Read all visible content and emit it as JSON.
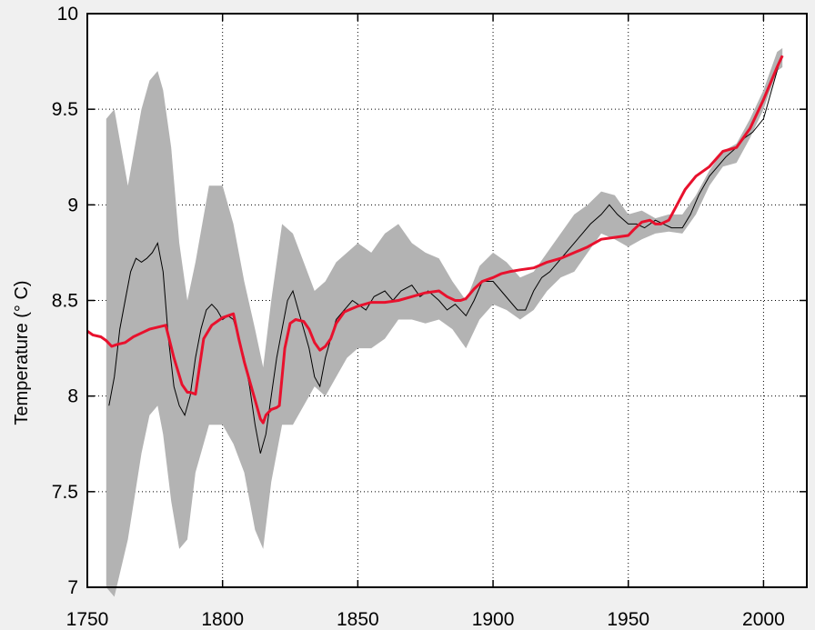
{
  "chart_data": {
    "type": "line",
    "title": "",
    "xlabel": "",
    "ylabel": "Temperature (° C)",
    "xlim": [
      1750,
      2016
    ],
    "ylim": [
      7,
      10
    ],
    "x_ticks": [
      1750,
      1800,
      1850,
      1900,
      1950,
      2000
    ],
    "y_ticks": [
      7,
      7.5,
      8,
      8.5,
      9,
      9.5,
      10
    ],
    "x_tick_labels": [
      "1750",
      "1800",
      "1850",
      "1900",
      "1950",
      "2000"
    ],
    "y_tick_labels": [
      "7",
      "7.5",
      "8",
      "8.5",
      "9",
      "9.5",
      "10"
    ],
    "grid": true,
    "colors": {
      "band": "#b3b3b3",
      "black_line": "#000000",
      "red_line": "#e8112d",
      "plot_bg": "#ffffff",
      "page_bg": "#f0f0f0"
    },
    "series": [
      {
        "kind": "uncertainty-band",
        "x": [
          1757,
          1760,
          1765,
          1770,
          1773,
          1776,
          1778,
          1781,
          1784,
          1787,
          1790,
          1795,
          1800,
          1804,
          1808,
          1812,
          1815,
          1818,
          1822,
          1826,
          1830,
          1834,
          1838,
          1842,
          1846,
          1850,
          1855,
          1860,
          1865,
          1870,
          1875,
          1880,
          1885,
          1890,
          1895,
          1900,
          1905,
          1910,
          1915,
          1920,
          1925,
          1930,
          1935,
          1940,
          1945,
          1950,
          1955,
          1960,
          1965,
          1970,
          1975,
          1980,
          1985,
          1990,
          1995,
          2000,
          2005,
          2007
        ],
        "upper": [
          9.45,
          9.5,
          9.1,
          9.5,
          9.65,
          9.7,
          9.6,
          9.3,
          8.8,
          8.5,
          8.7,
          9.1,
          9.1,
          8.9,
          8.6,
          8.35,
          8.15,
          8.5,
          8.9,
          8.85,
          8.7,
          8.55,
          8.6,
          8.7,
          8.75,
          8.8,
          8.75,
          8.85,
          8.9,
          8.8,
          8.75,
          8.72,
          8.6,
          8.5,
          8.68,
          8.75,
          8.7,
          8.62,
          8.65,
          8.75,
          8.85,
          8.95,
          9.0,
          9.07,
          9.05,
          8.95,
          8.97,
          8.93,
          8.95,
          8.95,
          9.05,
          9.18,
          9.28,
          9.32,
          9.45,
          9.6,
          9.8,
          9.82
        ],
        "lower": [
          7.0,
          6.95,
          7.25,
          7.7,
          7.9,
          7.95,
          7.8,
          7.45,
          7.2,
          7.25,
          7.6,
          7.85,
          7.85,
          7.75,
          7.6,
          7.3,
          7.2,
          7.55,
          7.85,
          7.85,
          7.95,
          8.05,
          8.0,
          8.1,
          8.2,
          8.25,
          8.25,
          8.3,
          8.4,
          8.4,
          8.38,
          8.4,
          8.35,
          8.25,
          8.4,
          8.48,
          8.45,
          8.4,
          8.45,
          8.55,
          8.62,
          8.65,
          8.75,
          8.85,
          8.82,
          8.78,
          8.82,
          8.85,
          8.86,
          8.85,
          8.95,
          9.1,
          9.2,
          9.22,
          9.35,
          9.5,
          9.7,
          9.72
        ]
      },
      {
        "kind": "black-line",
        "x": [
          1758,
          1760,
          1762,
          1764,
          1766,
          1768,
          1770,
          1772,
          1774,
          1776,
          1778,
          1780,
          1782,
          1784,
          1786,
          1788,
          1790,
          1792,
          1794,
          1796,
          1798,
          1800,
          1802,
          1804,
          1806,
          1808,
          1810,
          1812,
          1814,
          1816,
          1818,
          1820,
          1822,
          1824,
          1826,
          1828,
          1830,
          1832,
          1834,
          1836,
          1838,
          1840,
          1842,
          1845,
          1848,
          1850,
          1853,
          1856,
          1860,
          1863,
          1866,
          1870,
          1873,
          1876,
          1880,
          1883,
          1886,
          1890,
          1893,
          1896,
          1900,
          1903,
          1906,
          1909,
          1912,
          1915,
          1918,
          1921,
          1924,
          1927,
          1930,
          1933,
          1936,
          1940,
          1943,
          1946,
          1950,
          1953,
          1956,
          1960,
          1963,
          1966,
          1970,
          1973,
          1976,
          1980,
          1983,
          1986,
          1990,
          1993,
          1996,
          2000,
          2003,
          2006,
          2007
        ],
        "y": [
          7.95,
          8.1,
          8.35,
          8.5,
          8.65,
          8.72,
          8.7,
          8.72,
          8.75,
          8.8,
          8.65,
          8.3,
          8.05,
          7.95,
          7.9,
          8.0,
          8.2,
          8.35,
          8.45,
          8.48,
          8.45,
          8.4,
          8.42,
          8.4,
          8.3,
          8.2,
          8.05,
          7.85,
          7.7,
          7.8,
          8.0,
          8.2,
          8.35,
          8.5,
          8.55,
          8.45,
          8.35,
          8.25,
          8.1,
          8.05,
          8.2,
          8.3,
          8.4,
          8.45,
          8.5,
          8.48,
          8.45,
          8.52,
          8.55,
          8.5,
          8.55,
          8.58,
          8.52,
          8.55,
          8.5,
          8.45,
          8.48,
          8.42,
          8.5,
          8.6,
          8.6,
          8.55,
          8.5,
          8.45,
          8.45,
          8.55,
          8.62,
          8.65,
          8.7,
          8.75,
          8.8,
          8.85,
          8.9,
          8.95,
          9.0,
          8.95,
          8.9,
          8.9,
          8.88,
          8.92,
          8.9,
          8.88,
          8.88,
          8.95,
          9.05,
          9.15,
          9.2,
          9.25,
          9.3,
          9.35,
          9.38,
          9.45,
          9.6,
          9.75,
          9.78
        ]
      },
      {
        "kind": "red-line",
        "x": [
          1750,
          1752,
          1755,
          1757,
          1759,
          1761,
          1764,
          1767,
          1770,
          1773,
          1776,
          1779,
          1782,
          1785,
          1787,
          1788,
          1790,
          1793,
          1796,
          1800,
          1802,
          1804,
          1806,
          1808,
          1810,
          1812,
          1814,
          1815,
          1816,
          1818,
          1820,
          1821,
          1823,
          1825,
          1827,
          1830,
          1832,
          1834,
          1836,
          1838,
          1840,
          1842,
          1845,
          1850,
          1855,
          1860,
          1865,
          1870,
          1875,
          1880,
          1883,
          1886,
          1888,
          1890,
          1893,
          1896,
          1900,
          1903,
          1906,
          1910,
          1915,
          1920,
          1925,
          1930,
          1935,
          1940,
          1945,
          1950,
          1952,
          1955,
          1958,
          1960,
          1962,
          1965,
          1968,
          1971,
          1975,
          1980,
          1985,
          1990,
          1995,
          2000,
          2005,
          2007
        ],
        "y": [
          8.34,
          8.32,
          8.31,
          8.29,
          8.26,
          8.27,
          8.28,
          8.31,
          8.33,
          8.35,
          8.36,
          8.37,
          8.2,
          8.06,
          8.02,
          8.02,
          8.01,
          8.3,
          8.37,
          8.41,
          8.42,
          8.43,
          8.3,
          8.18,
          8.08,
          7.98,
          7.88,
          7.86,
          7.9,
          7.93,
          7.94,
          7.95,
          8.25,
          8.38,
          8.4,
          8.39,
          8.35,
          8.28,
          8.24,
          8.26,
          8.3,
          8.38,
          8.44,
          8.47,
          8.49,
          8.49,
          8.5,
          8.52,
          8.54,
          8.55,
          8.52,
          8.5,
          8.5,
          8.51,
          8.56,
          8.6,
          8.62,
          8.64,
          8.65,
          8.66,
          8.67,
          8.7,
          8.72,
          8.75,
          8.78,
          8.82,
          8.83,
          8.84,
          8.87,
          8.91,
          8.92,
          8.9,
          8.9,
          8.92,
          9.0,
          9.08,
          9.15,
          9.2,
          9.28,
          9.3,
          9.4,
          9.55,
          9.72,
          9.78
        ]
      }
    ]
  }
}
